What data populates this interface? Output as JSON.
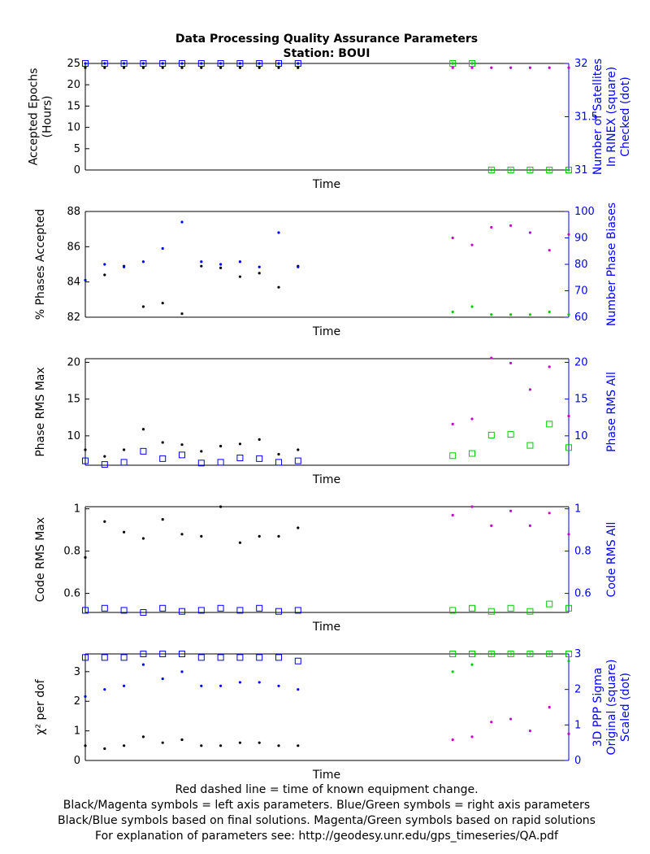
{
  "title": "Data Processing Quality Assurance Parameters",
  "subtitle": "Station: BOUI",
  "footer": [
    "Red dashed line = time of known equipment change.",
    "Black/Magenta symbols = left axis parameters. Blue/Green symbols = right axis parameters",
    "Black/Blue symbols based on final solutions.  Magenta/Green symbols based on rapid solutions",
    "For explanation of parameters see: http://geodesy.unr.edu/gps_timeseries/QA.pdf"
  ],
  "colors": {
    "final_left": "#000000",
    "final_right": "#0000ff",
    "rapid_left": "#cc00cc",
    "rapid_right": "#00cc00",
    "right_axis": "#0000ff"
  },
  "chart_data": [
    {
      "type": "scatter",
      "xlabel": "Time",
      "ylabel": [
        "Accepted Epochs",
        "(Hours)"
      ],
      "ylabel_right": [
        "Number of Satellites",
        "In RINEX (square)",
        "Checked (dot)"
      ],
      "ylim": [
        0,
        25
      ],
      "yticks": [
        0,
        5,
        10,
        15,
        20,
        25
      ],
      "ylim_right": [
        31,
        32
      ],
      "yticks_right": [
        "31",
        "31.5",
        "32"
      ],
      "grid": false,
      "series": [
        {
          "role": "final_left",
          "marker": "dot",
          "x": [
            0,
            1,
            2,
            3,
            4,
            5,
            6,
            7,
            8,
            9,
            10,
            11
          ],
          "y": [
            24,
            24,
            24,
            24,
            24,
            24,
            24,
            24,
            24,
            24,
            24,
            24
          ]
        },
        {
          "role": "final_right_square",
          "marker": "square",
          "x": [
            0,
            1,
            2,
            3,
            4,
            5,
            6,
            7,
            8,
            9,
            10,
            11
          ],
          "y": [
            32,
            32,
            32,
            32,
            32,
            32,
            32,
            32,
            32,
            32,
            32,
            32
          ]
        },
        {
          "role": "final_right_dot",
          "marker": "dot",
          "x": [
            0,
            1,
            2,
            3,
            4,
            5,
            6,
            7,
            8,
            9,
            10,
            11
          ],
          "y": [
            32,
            32,
            32,
            32,
            32,
            32,
            32,
            32,
            32,
            32,
            32,
            32
          ]
        },
        {
          "role": "rapid_left",
          "marker": "dot",
          "x": [
            19,
            20,
            21,
            22,
            23,
            24,
            25
          ],
          "y": [
            24,
            24,
            24,
            24,
            24,
            24,
            24
          ]
        },
        {
          "role": "rapid_right_square",
          "marker": "square",
          "x": [
            19,
            20,
            21,
            22,
            23,
            24,
            25
          ],
          "y": [
            32,
            32,
            31,
            31,
            31,
            31,
            31
          ]
        },
        {
          "role": "rapid_right_dot",
          "marker": "dot",
          "x": [
            19,
            20,
            21,
            22,
            23,
            24,
            25
          ],
          "y": [
            32,
            32,
            31,
            31,
            31,
            31,
            31
          ]
        }
      ]
    },
    {
      "type": "scatter",
      "xlabel": "Time",
      "ylabel": [
        "% Phases Accepted"
      ],
      "ylabel_right": [
        "Number Phase Biases"
      ],
      "ylim": [
        82,
        88
      ],
      "yticks": [
        82,
        84,
        86,
        88
      ],
      "ylim_right": [
        60,
        100
      ],
      "yticks_right": [
        "60",
        "70",
        "80",
        "90",
        "100"
      ],
      "grid": false,
      "series": [
        {
          "role": "final_left",
          "marker": "dot",
          "x": [
            1,
            2,
            3,
            4,
            5,
            6,
            7,
            8,
            9,
            10,
            11
          ],
          "y": [
            84.4,
            84.9,
            82.6,
            82.8,
            82.2,
            84.9,
            84.8,
            84.3,
            84.5,
            83.7,
            84.9
          ]
        },
        {
          "role": "final_right_dot",
          "marker": "dot",
          "x": [
            0,
            1,
            2,
            3,
            4,
            5,
            6,
            7,
            8,
            9,
            10,
            11
          ],
          "y": [
            74,
            80,
            79,
            81,
            86,
            96,
            81,
            80,
            81,
            79,
            92,
            79
          ]
        },
        {
          "role": "rapid_left",
          "marker": "dot",
          "x": [
            19,
            20,
            21,
            22,
            23,
            24,
            25
          ],
          "y": [
            86.5,
            86.1,
            87.1,
            87.2,
            86.8,
            85.8,
            86.7
          ]
        },
        {
          "role": "rapid_right_dot",
          "marker": "dot",
          "x": [
            19,
            20,
            21,
            22,
            23,
            24,
            25
          ],
          "y": [
            62,
            64,
            61,
            61,
            61,
            62,
            61
          ]
        }
      ]
    },
    {
      "type": "scatter",
      "xlabel": "Time",
      "ylabel": [
        "Phase RMS Max"
      ],
      "ylabel_right": [
        "Phase RMS All"
      ],
      "ylim": [
        6,
        20.5
      ],
      "yticks": [
        10,
        15,
        20
      ],
      "ylim_right": [
        6,
        20.5
      ],
      "yticks_right": [
        "10",
        "15",
        "20"
      ],
      "grid": false,
      "series": [
        {
          "role": "final_left",
          "marker": "dot",
          "x": [
            0,
            1,
            2,
            3,
            4,
            5,
            6,
            7,
            8,
            9,
            10,
            11
          ],
          "y": [
            8.1,
            7.2,
            8.1,
            10.9,
            9.1,
            8.8,
            7.9,
            8.6,
            8.9,
            9.5,
            7.5,
            8.1
          ]
        },
        {
          "role": "final_right_square",
          "marker": "square",
          "x": [
            0,
            1,
            2,
            3,
            4,
            5,
            6,
            7,
            8,
            9,
            10,
            11
          ],
          "y": [
            6.6,
            6.1,
            6.4,
            7.9,
            6.9,
            7.4,
            6.3,
            6.4,
            7.0,
            6.9,
            6.4,
            6.6
          ]
        },
        {
          "role": "rapid_left",
          "marker": "dot",
          "x": [
            19,
            20,
            21,
            22,
            23,
            24,
            25
          ],
          "y": [
            11.6,
            12.3,
            20.6,
            19.9,
            16.3,
            19.4,
            12.7
          ]
        },
        {
          "role": "rapid_right_square",
          "marker": "square",
          "x": [
            19,
            20,
            21,
            22,
            23,
            24,
            25
          ],
          "y": [
            7.3,
            7.6,
            10.1,
            10.2,
            8.7,
            11.6,
            8.4
          ]
        }
      ]
    },
    {
      "type": "scatter",
      "xlabel": "Time",
      "ylabel": [
        "Code RMS Max"
      ],
      "ylabel_right": [
        "Code RMS All"
      ],
      "ylim": [
        0.51,
        1.01
      ],
      "yticks": [
        0.6,
        0.8,
        1
      ],
      "ylim_right": [
        0.51,
        1.01
      ],
      "yticks_right": [
        "0.6",
        "0.8",
        "1"
      ],
      "grid": false,
      "series": [
        {
          "role": "final_left",
          "marker": "dot",
          "x": [
            0,
            1,
            2,
            3,
            4,
            5,
            6,
            7,
            8,
            9,
            10,
            11
          ],
          "y": [
            0.77,
            0.94,
            0.89,
            0.86,
            0.95,
            0.88,
            0.87,
            1.01,
            0.84,
            0.87,
            0.87,
            0.91
          ]
        },
        {
          "role": "final_right_square",
          "marker": "square",
          "x": [
            0,
            1,
            2,
            3,
            4,
            5,
            6,
            7,
            8,
            9,
            10,
            11
          ],
          "y": [
            0.52,
            0.53,
            0.52,
            0.51,
            0.53,
            0.515,
            0.52,
            0.53,
            0.52,
            0.53,
            0.515,
            0.52
          ]
        },
        {
          "role": "rapid_left",
          "marker": "dot",
          "x": [
            19,
            20,
            21,
            22,
            23,
            24,
            25
          ],
          "y": [
            0.97,
            1.01,
            0.92,
            0.99,
            0.92,
            0.98,
            0.88
          ]
        },
        {
          "role": "rapid_right_square",
          "marker": "square",
          "x": [
            19,
            20,
            21,
            22,
            23,
            24,
            25
          ],
          "y": [
            0.52,
            0.53,
            0.515,
            0.53,
            0.515,
            0.55,
            0.53
          ]
        }
      ]
    },
    {
      "type": "scatter",
      "xlabel": "Time",
      "ylabel": [
        "χ² per dof"
      ],
      "ylabel_right": [
        "3D PPP Sigma",
        "Original (square)",
        "Scaled (dot)"
      ],
      "ylim": [
        0,
        3.6
      ],
      "yticks": [
        0,
        1,
        2,
        3
      ],
      "ylim_right": [
        0,
        3
      ],
      "yticks_right": [
        "0",
        "1",
        "2",
        "3"
      ],
      "grid": false,
      "series": [
        {
          "role": "final_left",
          "marker": "dot",
          "x": [
            0,
            1,
            2,
            3,
            4,
            5,
            6,
            7,
            8,
            9,
            10,
            11
          ],
          "y": [
            0.5,
            0.4,
            0.5,
            0.8,
            0.6,
            0.7,
            0.5,
            0.5,
            0.6,
            0.6,
            0.5,
            0.5
          ]
        },
        {
          "role": "final_right_square",
          "marker": "square",
          "x": [
            0,
            1,
            2,
            3,
            4,
            5,
            6,
            7,
            8,
            9,
            10,
            11
          ],
          "y": [
            2.9,
            2.9,
            2.9,
            3.0,
            3.0,
            3.0,
            2.9,
            2.9,
            2.9,
            2.9,
            2.9,
            2.8
          ]
        },
        {
          "role": "final_right_dot",
          "marker": "dot",
          "x": [
            0,
            1,
            2,
            3,
            4,
            5,
            6,
            7,
            8,
            9,
            10,
            11
          ],
          "y": [
            1.8,
            2.0,
            2.1,
            2.7,
            2.3,
            2.5,
            2.1,
            2.1,
            2.2,
            2.2,
            2.1,
            2.0
          ]
        },
        {
          "role": "rapid_left",
          "marker": "dot",
          "x": [
            19,
            20,
            21,
            22,
            23,
            24,
            25
          ],
          "y": [
            0.7,
            0.8,
            1.3,
            1.4,
            1.0,
            1.8,
            0.9
          ]
        },
        {
          "role": "rapid_right_square",
          "marker": "square",
          "x": [
            19,
            20,
            21,
            22,
            23,
            24,
            25
          ],
          "y": [
            3.0,
            3.0,
            3.0,
            3.0,
            3.0,
            3.0,
            3.0
          ]
        },
        {
          "role": "rapid_right_dot",
          "marker": "dot",
          "x": [
            19,
            20,
            21,
            22,
            23,
            24,
            25
          ],
          "y": [
            2.5,
            2.7,
            3.0,
            3.0,
            3.0,
            3.0,
            2.8
          ]
        }
      ]
    }
  ]
}
